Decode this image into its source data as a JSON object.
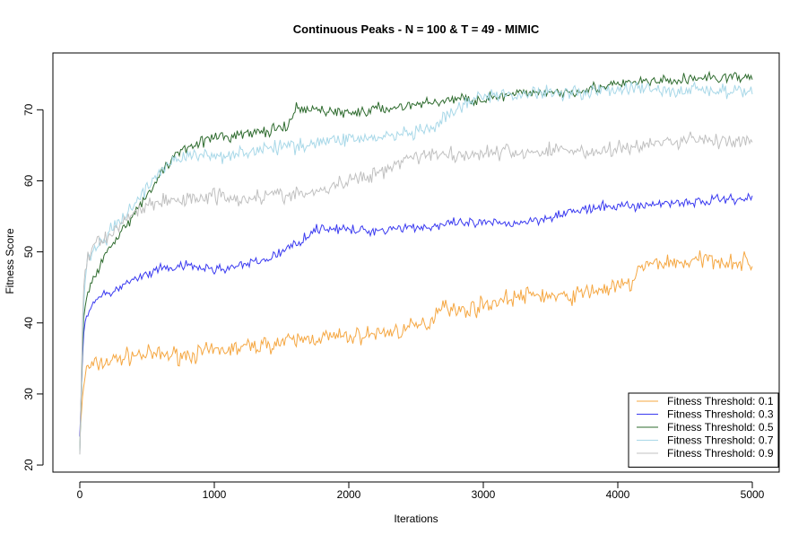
{
  "chart_data": {
    "type": "line",
    "title": "Continuous Peaks - N = 100 & T = 49 - MIMIC",
    "xlabel": "Iterations",
    "ylabel": "Fitness Score",
    "xlim": [
      -200,
      5200
    ],
    "ylim": [
      19,
      78
    ],
    "x_ticks": [
      0,
      1000,
      2000,
      3000,
      4000,
      5000
    ],
    "y_ticks": [
      20,
      30,
      40,
      50,
      60,
      70
    ],
    "grid": false,
    "legend_position": "bottom-right",
    "noise_seed": 7,
    "series": [
      {
        "name": "Fitness Threshold: 0.1",
        "color": "#f5a742",
        "noise": 1.2,
        "x": [
          0,
          25,
          50,
          100,
          200,
          400,
          600,
          800,
          1000,
          1200,
          1400,
          1600,
          1800,
          2000,
          2200,
          2400,
          2600,
          2700,
          2800,
          3000,
          3200,
          3400,
          3600,
          3800,
          4000,
          4100,
          4150,
          4300,
          4500,
          4700,
          4900,
          5000
        ],
        "values": [
          24,
          31,
          33.5,
          34,
          34.5,
          35.5,
          35.5,
          35.5,
          36,
          36.5,
          37,
          37.5,
          38,
          38,
          38.5,
          39,
          40,
          43,
          41.5,
          42.5,
          43.5,
          44,
          43.5,
          44.5,
          45,
          45.5,
          47.5,
          48.5,
          48.5,
          49,
          48.5,
          48.5
        ]
      },
      {
        "name": "Fitness Threshold: 0.3",
        "color": "#3a3af0",
        "noise": 0.7,
        "x": [
          0,
          25,
          50,
          100,
          200,
          400,
          600,
          800,
          1000,
          1200,
          1300,
          1400,
          1500,
          1600,
          1700,
          1800,
          2000,
          2200,
          2400,
          2600,
          2800,
          3000,
          3200,
          3400,
          3600,
          3800,
          4000,
          4200,
          4400,
          4600,
          4800,
          5000
        ],
        "values": [
          24,
          38,
          41,
          43,
          44,
          46,
          47.5,
          48,
          47.5,
          48,
          48.5,
          49,
          50,
          51,
          52.5,
          53.5,
          53,
          53,
          53.5,
          53.5,
          54,
          54,
          54,
          54.5,
          55.5,
          56,
          56.5,
          56.5,
          57,
          57,
          57.5,
          57.5
        ]
      },
      {
        "name": "Fitness Threshold: 0.5",
        "color": "#2e6b2e",
        "noise": 0.8,
        "x": [
          0,
          25,
          50,
          100,
          200,
          300,
          400,
          500,
          600,
          700,
          800,
          1000,
          1200,
          1400,
          1550,
          1600,
          1800,
          2000,
          2200,
          2400,
          2600,
          2800,
          3000,
          3200,
          3400,
          3600,
          3800,
          4000,
          4200,
          4400,
          4600,
          4800,
          5000
        ],
        "values": [
          22,
          40,
          44,
          46,
          50,
          53,
          55,
          58,
          61,
          63.5,
          65,
          66,
          66.5,
          67,
          67.5,
          70,
          70,
          69.5,
          70,
          70.5,
          71,
          71.5,
          71.5,
          72,
          72.5,
          72.5,
          73,
          73.5,
          74,
          74,
          74.5,
          74.5,
          74.5
        ]
      },
      {
        "name": "Fitness Threshold: 0.7",
        "color": "#a8d8e8",
        "noise": 1.0,
        "x": [
          0,
          25,
          50,
          100,
          200,
          300,
          400,
          500,
          600,
          700,
          800,
          1000,
          1200,
          1400,
          1600,
          1800,
          2000,
          2200,
          2400,
          2600,
          2800,
          3000,
          3200,
          3400,
          3600,
          3800,
          4000,
          4200,
          4400,
          4600,
          4800,
          5000
        ],
        "values": [
          21.5,
          42,
          48,
          50.5,
          52,
          54.5,
          56.5,
          59,
          61.5,
          63,
          63.5,
          63.5,
          64,
          64.5,
          65,
          65.5,
          66,
          66,
          66.5,
          67,
          70,
          72,
          72,
          72.5,
          72.5,
          72.5,
          73,
          73,
          72.5,
          73,
          72.5,
          72.5
        ]
      },
      {
        "name": "Fitness Threshold: 0.9",
        "color": "#c0c0c0",
        "noise": 1.1,
        "x": [
          0,
          25,
          50,
          100,
          200,
          300,
          400,
          500,
          600,
          800,
          1000,
          1200,
          1400,
          1600,
          1800,
          2000,
          2200,
          2400,
          2600,
          2800,
          3000,
          3200,
          3400,
          3600,
          3800,
          4000,
          4200,
          4400,
          4600,
          4800,
          5000
        ],
        "values": [
          21.5,
          45,
          48.5,
          51,
          52,
          54,
          55.5,
          56.5,
          57,
          57.5,
          58,
          57.5,
          58,
          58,
          58.5,
          60,
          61,
          63,
          64,
          63.5,
          64,
          64,
          64,
          64.5,
          64,
          64.5,
          65,
          65.5,
          66,
          65.5,
          65.5
        ]
      }
    ]
  }
}
